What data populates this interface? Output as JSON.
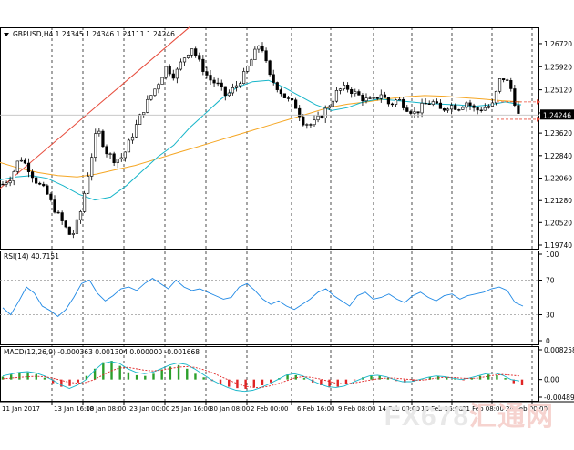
{
  "window": {
    "symbol_header": "GBPUSD,H4",
    "ohlc": "1.24345 1.24346 1.24111 1.24246",
    "menu_arrow": "triangle-down-icon"
  },
  "watermark": {
    "text": "FX678",
    "cn": "汇通网"
  },
  "current_price_label": "1.24246",
  "chart_data": [
    {
      "type": "candlestick",
      "title": "GBPUSD,H4",
      "y_ticks": [
        "1.26720",
        "1.25920",
        "1.25120",
        "1.24320",
        "1.23620",
        "1.22840",
        "1.22060",
        "1.21280",
        "1.20520",
        "1.19740"
      ],
      "ylim": [
        1.1974,
        1.2716
      ],
      "current_price": 1.24246,
      "x_ticks": [
        "11 Jan 2017",
        "13 Jan 16:00",
        "18 Jan 08:00",
        "23 Jan 00:00",
        "25 Jan 16:00",
        "30 Jan 08:00",
        "2 Feb 00:00",
        "6 Feb 16:00",
        "9 Feb 08:00",
        "14 Feb 00:00",
        "16 Feb 16:00",
        "21 Feb 08:00",
        "24 Feb 00:00"
      ],
      "close_path": [
        1.2185,
        1.221,
        1.228,
        1.224,
        1.219,
        1.216,
        1.21,
        1.205,
        1.2,
        1.208,
        1.223,
        1.238,
        1.23,
        1.227,
        1.228,
        1.235,
        1.242,
        1.248,
        1.253,
        1.259,
        1.256,
        1.262,
        1.266,
        1.26,
        1.255,
        1.253,
        1.249,
        1.252,
        1.256,
        1.262,
        1.268,
        1.256,
        1.252,
        1.248,
        1.246,
        1.24,
        1.239,
        1.242,
        1.246,
        1.251,
        1.252,
        1.25,
        1.248,
        1.247,
        1.25,
        1.246,
        1.248,
        1.245,
        1.243,
        1.246,
        1.247,
        1.244,
        1.246,
        1.245,
        1.247,
        1.244,
        1.245,
        1.246,
        1.256,
        1.253,
        1.2425
      ],
      "ma_fast": [
        1.22,
        1.221,
        1.2215,
        1.2205,
        1.218,
        1.215,
        1.213,
        1.214,
        1.218,
        1.223,
        1.228,
        1.232,
        1.238,
        1.243,
        1.248,
        1.252,
        1.254,
        1.2545,
        1.252,
        1.249,
        1.246,
        1.244,
        1.245,
        1.247,
        1.248,
        1.2475,
        1.247,
        1.2465,
        1.2462,
        1.246,
        1.2455,
        1.246,
        1.247,
        1.246
      ],
      "ma_slow": [
        1.226,
        1.224,
        1.2225,
        1.2215,
        1.221,
        1.222,
        1.2235,
        1.225,
        1.227,
        1.229,
        1.231,
        1.233,
        1.235,
        1.237,
        1.239,
        1.241,
        1.243,
        1.245,
        1.2462,
        1.247,
        1.248,
        1.2488,
        1.2492,
        1.249,
        1.2485,
        1.248,
        1.2474,
        1.247
      ],
      "trend_line": {
        "from": [
          0,
          1.217
        ],
        "to": [
          0.34,
          1.273
        ]
      },
      "price_levels": [
        1.247,
        1.241
      ],
      "price_level_color": "#e74c3c",
      "colors": {
        "up": "#000000",
        "down": "#000000",
        "ma_fast": "#16b5c9",
        "ma_slow": "#f5a623",
        "trend": "#e74c3c"
      }
    },
    {
      "type": "line",
      "title": "RSI(14) 40.7151",
      "y_ticks": [
        "100",
        "70",
        "30",
        "0"
      ],
      "ylim": [
        0,
        100
      ],
      "levels": [
        70,
        30
      ],
      "values": [
        38,
        30,
        45,
        62,
        55,
        40,
        35,
        28,
        36,
        50,
        66,
        70,
        55,
        46,
        52,
        60,
        62,
        58,
        66,
        72,
        66,
        60,
        70,
        62,
        58,
        60,
        56,
        52,
        48,
        50,
        62,
        66,
        58,
        48,
        42,
        46,
        40,
        36,
        42,
        48,
        56,
        60,
        52,
        46,
        40,
        52,
        56,
        48,
        50,
        54,
        48,
        44,
        52,
        56,
        50,
        46,
        52,
        54,
        48,
        52,
        54,
        56,
        60,
        62,
        58,
        44,
        40
      ]
    },
    {
      "type": "bar",
      "title": "MACD(12,26,9) -0.000363 0.001304 0.000000 -0.001668",
      "y_ticks": [
        "0.008258",
        "0.00",
        "-0.004891"
      ],
      "ylim": [
        -0.004891,
        0.008258
      ],
      "histogram": [
        0.0008,
        0.0014,
        0.0018,
        0.002,
        0.0015,
        0.0005,
        -0.001,
        -0.002,
        -0.0018,
        -0.0008,
        0.001,
        0.003,
        0.0048,
        0.0052,
        0.0038,
        0.002,
        0.0012,
        0.001,
        0.0016,
        0.0028,
        0.0036,
        0.004,
        0.003,
        0.0016,
        0.0006,
        -0.0004,
        -0.0012,
        -0.002,
        -0.0024,
        -0.0026,
        -0.0022,
        -0.0016,
        -0.0008,
        0.0004,
        0.0014,
        0.0012,
        0.0004,
        -0.0008,
        -0.0016,
        -0.0022,
        -0.002,
        -0.0012,
        -0.0002,
        0.0006,
        0.0012,
        0.001,
        0.0004,
        -0.0004,
        -0.0008,
        -0.0006,
        0.0002,
        0.0008,
        0.001,
        0.0006,
        0.0002,
        -0.0002,
        0.0004,
        0.001,
        0.0014,
        0.0012,
        0.0004,
        -0.001,
        -0.0016
      ],
      "macd": [
        0.001,
        0.0015,
        0.002,
        0.0022,
        0.0018,
        0.001,
        -0.0002,
        -0.0015,
        -0.0025,
        -0.0015,
        0.0,
        0.0025,
        0.0045,
        0.005,
        0.0045,
        0.003,
        0.002,
        0.0016,
        0.002,
        0.003,
        0.004,
        0.0046,
        0.0042,
        0.003,
        0.0015,
        0.0,
        -0.0012,
        -0.0022,
        -0.003,
        -0.0033,
        -0.003,
        -0.0022,
        -0.0012,
        0.0,
        0.0012,
        0.0016,
        0.001,
        -0.0002,
        -0.0012,
        -0.002,
        -0.0022,
        -0.0018,
        -0.0008,
        0.0002,
        0.001,
        0.0012,
        0.0008,
        0.0,
        -0.0006,
        -0.0006,
        0.0,
        0.0006,
        0.001,
        0.0008,
        0.0004,
        0.0,
        0.0004,
        0.001,
        0.0016,
        0.0018,
        0.0012,
        0.0,
        -0.0004
      ],
      "signal": [
        0.0002,
        0.0004,
        0.0006,
        0.0008,
        0.0009,
        0.0008,
        0.0004,
        -0.0002,
        -0.0008,
        -0.001,
        -0.0008,
        0.0,
        0.0012,
        0.0024,
        0.0032,
        0.0034,
        0.003,
        0.0026,
        0.0024,
        0.0026,
        0.003,
        0.0034,
        0.0036,
        0.0034,
        0.0028,
        0.002,
        0.001,
        0.0,
        -0.001,
        -0.0018,
        -0.0022,
        -0.0022,
        -0.0018,
        -0.0012,
        -0.0004,
        0.0004,
        0.0008,
        0.0006,
        0.0002,
        -0.0004,
        -0.001,
        -0.0012,
        -0.001,
        -0.0006,
        -0.0002,
        0.0002,
        0.0004,
        0.0004,
        0.0002,
        0.0,
        -0.0002,
        0.0,
        0.0004,
        0.0006,
        0.0006,
        0.0004,
        0.0003,
        0.0004,
        0.0008,
        0.0012,
        0.0014,
        0.0012,
        0.001
      ],
      "colors": {
        "pos": "#2ca02c",
        "neg": "#e02424",
        "macd": "#16b5c9",
        "signal": "#e02424"
      }
    }
  ]
}
